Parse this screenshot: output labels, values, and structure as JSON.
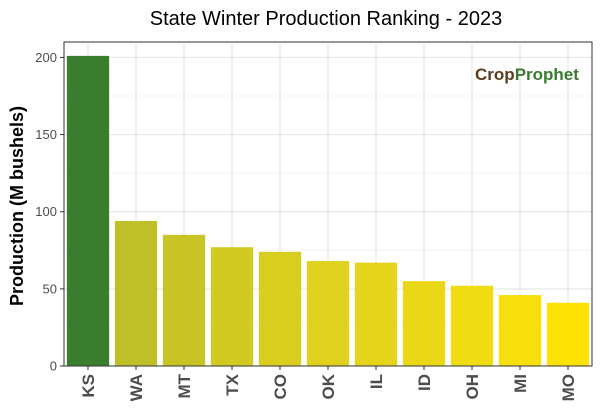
{
  "chart_data": {
    "type": "bar",
    "title": "State Winter  Production Ranking - 2023",
    "xlabel": "",
    "ylabel": "Production (M bushels)",
    "categories": [
      "KS",
      "WA",
      "MT",
      "TX",
      "CO",
      "OK",
      "IL",
      "ID",
      "OH",
      "MI",
      "MO"
    ],
    "values": [
      201,
      94,
      85,
      77,
      74,
      68,
      67,
      55,
      52,
      46,
      41
    ],
    "bar_colors": [
      "#3b7d2e",
      "#bfbf28",
      "#c9c426",
      "#d2c923",
      "#d9cd20",
      "#dfd11d",
      "#e5d51a",
      "#ead816",
      "#f0dc12",
      "#f6df0c",
      "#fde205"
    ],
    "ylim": [
      0,
      210
    ],
    "yticks": [
      0,
      50,
      100,
      150,
      200
    ],
    "grid": true,
    "logo": {
      "part1": "Cr",
      "part2": "p",
      "part3": "Prophet"
    }
  }
}
